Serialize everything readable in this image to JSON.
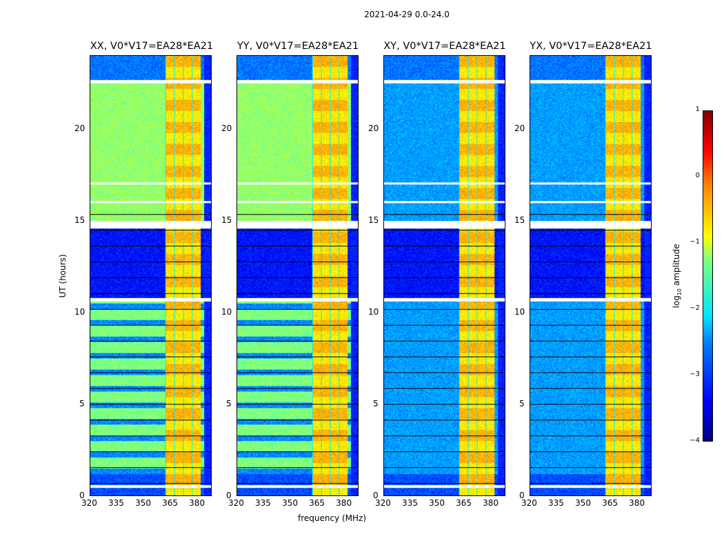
{
  "chart_data": {
    "type": "heatmap",
    "title": "2021-04-29 0.0-24.0",
    "xlabel": "frequency (MHz)",
    "ylabel": "UT (hours)",
    "xlim": [
      320,
      388
    ],
    "ylim": [
      0,
      24
    ],
    "xticks": [
      "320",
      "335",
      "350",
      "365",
      "380"
    ],
    "xtick_values": [
      320,
      335,
      350,
      365,
      380
    ],
    "yticks": [
      "0",
      "5",
      "10",
      "15",
      "20"
    ],
    "ytick_values": [
      0,
      5,
      10,
      15,
      20
    ],
    "panels": [
      {
        "name": "XX",
        "title": "XX, V0*V17=EA28*EA21",
        "background_level": -1.4
      },
      {
        "name": "YY",
        "title": "YY, V0*V17=EA28*EA21",
        "background_level": -1.4
      },
      {
        "name": "XY",
        "title": "XY, V0*V17=EA28*EA21",
        "background_level": -2.6
      },
      {
        "name": "YX",
        "title": "YX, V0*V17=EA28*EA21",
        "background_level": -2.6
      }
    ],
    "rfi_band_mhz": [
      362,
      382
    ],
    "rfi_level": -0.5,
    "flagged_gap_hours": [
      [
        0.45,
        0.6
      ],
      [
        10.6,
        10.8
      ],
      [
        14.6,
        15.0
      ],
      [
        16.0,
        16.1
      ],
      [
        17.0,
        17.1
      ],
      [
        22.5,
        22.7
      ]
    ],
    "colorbar": {
      "label": "log10 amplitude",
      "label_main": "log",
      "label_sub": "10",
      "label_tail": " amplitude",
      "range": [
        -4,
        1
      ],
      "ticks": [
        "1",
        "0",
        "−1",
        "−2",
        "−3",
        "−4"
      ],
      "tick_values": [
        1,
        0,
        -1,
        -2,
        -3,
        -4
      ],
      "colormap": "jet"
    }
  }
}
